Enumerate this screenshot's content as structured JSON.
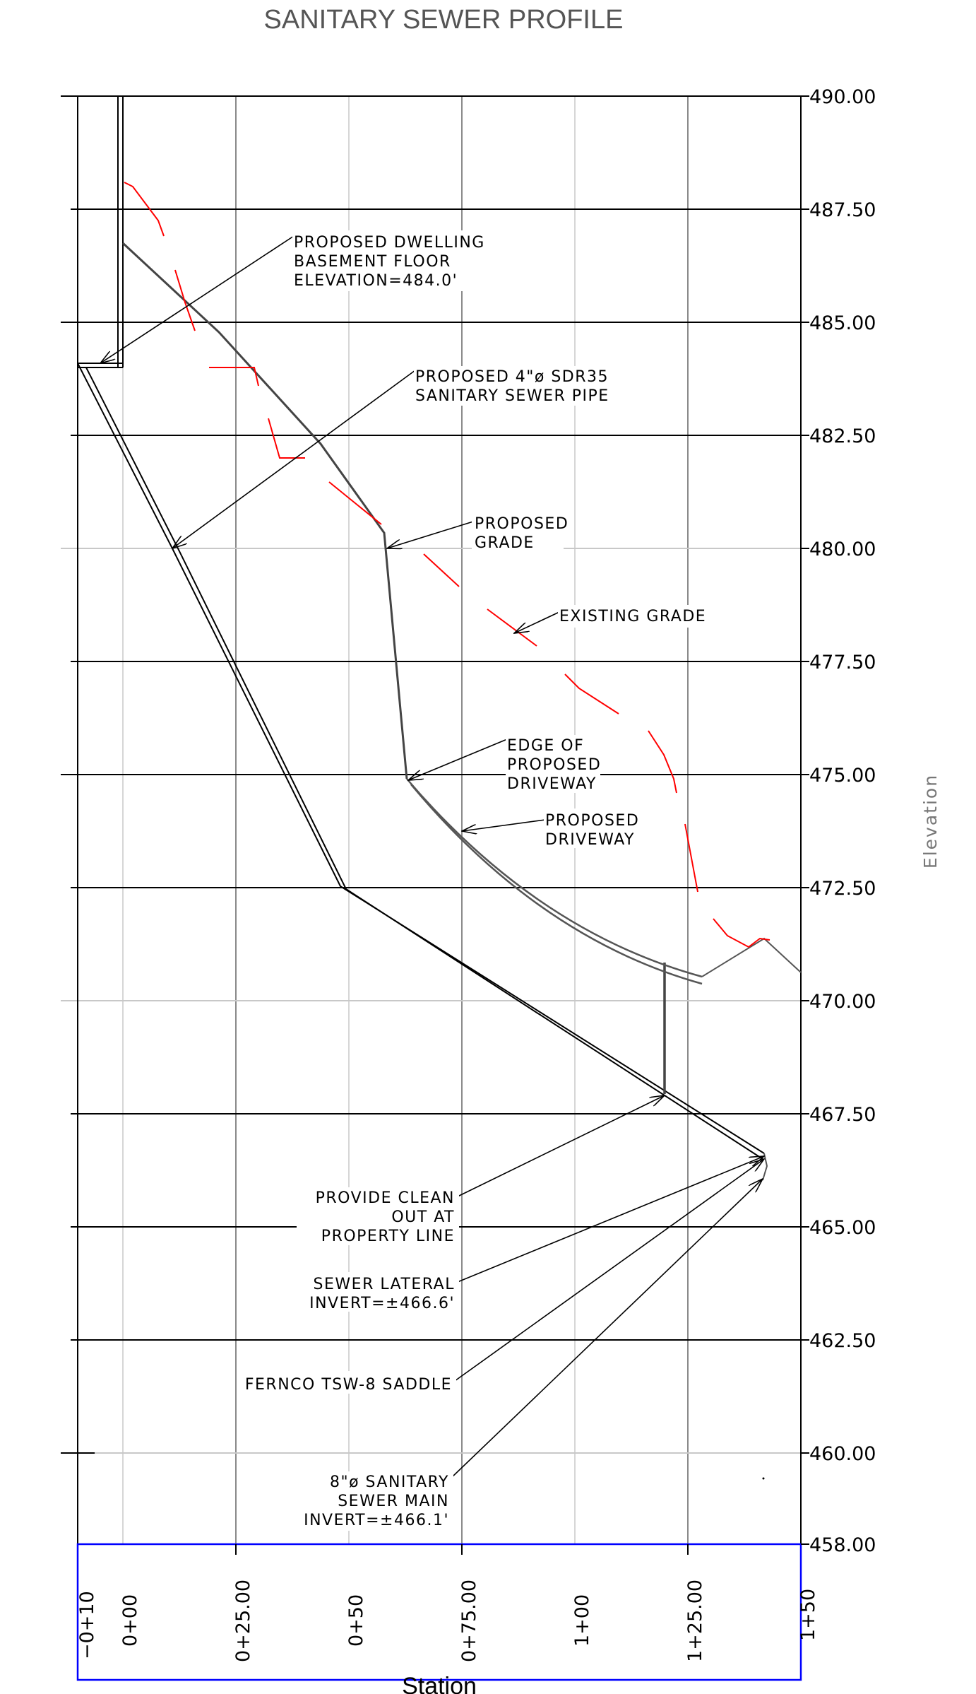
{
  "title": "SANITARY SEWER PROFILE",
  "x_axis_label": "Station",
  "y_axis_label": "Elevation",
  "elevation_labels": [
    "490.00",
    "487.50",
    "485.00",
    "482.50",
    "480.00",
    "477.50",
    "475.00",
    "472.50",
    "470.00",
    "467.50",
    "465.00",
    "462.50",
    "460.00",
    "458.00"
  ],
  "station_labels": [
    "−0+10",
    "0+00",
    "0+25.00",
    "0+50",
    "0+75.00",
    "1+00",
    "1+25.00",
    "1+50"
  ],
  "colors": {
    "existing_grade": "#ff0000",
    "frame": "#0000ff",
    "lines": "#000000",
    "grid_major": "#000000",
    "grid_minor": "#c8c8c8"
  },
  "callouts": {
    "basement": [
      "PROPOSED DWELLING",
      "BASEMENT FLOOR",
      "ELEVATION=484.0'"
    ],
    "sewer_pipe": [
      "PROPOSED 4\"ø SDR35",
      "SANITARY SEWER PIPE"
    ],
    "proposed_grade": [
      "PROPOSED",
      "GRADE"
    ],
    "existing_grade": [
      "EXISTING GRADE"
    ],
    "driveway_edge": [
      "EDGE OF",
      "PROPOSED",
      "DRIVEWAY"
    ],
    "driveway": [
      "PROPOSED",
      "DRIVEWAY"
    ],
    "clean_out": [
      "PROVIDE CLEAN",
      "OUT AT",
      "PROPERTY LINE"
    ],
    "lateral_invert": [
      "SEWER LATERAL",
      "INVERT=±466.6'"
    ],
    "saddle": [
      "FERNCO TSW-8 SADDLE"
    ],
    "sewer_main": [
      "8\"ø SANITARY",
      "SEWER MAIN",
      "INVERT=±466.1'"
    ]
  }
}
